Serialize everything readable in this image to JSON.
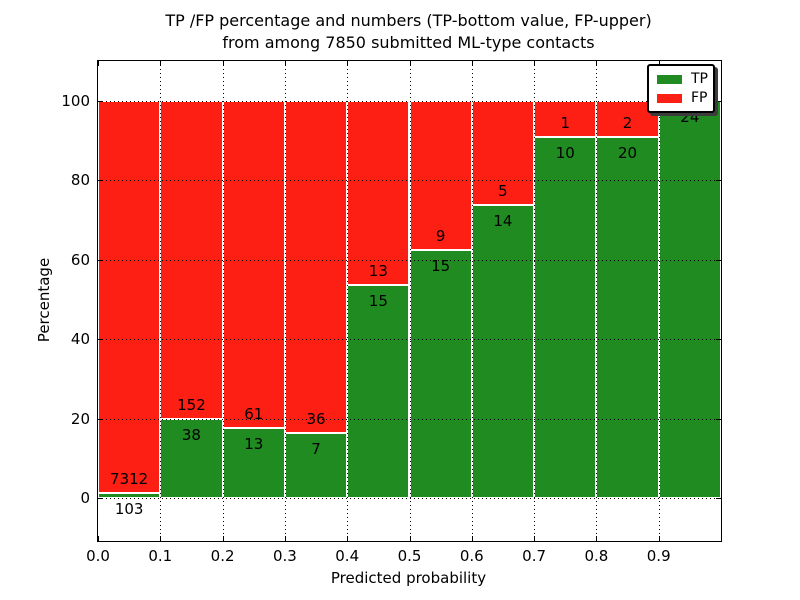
{
  "figure": {
    "title_line1": "TP /FP percentage and numbers (TP-bottom value, FP-upper)",
    "title_line2": "from among 7850 submitted ML-type contacts"
  },
  "legend": {
    "items": [
      {
        "label": "TP",
        "color": "#208b20"
      },
      {
        "label": "FP",
        "color": "#fd1e14"
      }
    ]
  },
  "chart_data": {
    "type": "bar",
    "stacked": true,
    "title": "TP /FP percentage and numbers (TP-bottom value, FP-upper)\nfrom among 7850 submitted ML-type contacts",
    "xlabel": "Predicted probability",
    "ylabel": "Percentage",
    "xlim": [
      0.0,
      1.0
    ],
    "ylim": [
      -10.8,
      110
    ],
    "grid": true,
    "grid_style": "dotted",
    "legend_position": "upper right",
    "bar_width": 0.1,
    "bin_starts": [
      0.0,
      0.1,
      0.2,
      0.3,
      0.4,
      0.5,
      0.6,
      0.7,
      0.8,
      0.9
    ],
    "series": [
      {
        "name": "TP",
        "color": "#208b20",
        "counts": [
          103,
          38,
          13,
          7,
          15,
          15,
          14,
          10,
          20,
          24
        ]
      },
      {
        "name": "FP",
        "color": "#fd1e14",
        "counts": [
          7312,
          152,
          61,
          36,
          13,
          9,
          5,
          1,
          2,
          0
        ]
      }
    ],
    "tp_percent": [
      1.4,
      20.0,
      17.6,
      16.3,
      53.6,
      62.5,
      73.7,
      90.9,
      90.9,
      100.0
    ],
    "total_contacts": 7850,
    "x_ticks": [
      {
        "v": 0.0,
        "label": "0.0"
      },
      {
        "v": 0.1,
        "label": "0.1"
      },
      {
        "v": 0.2,
        "label": "0.2"
      },
      {
        "v": 0.3,
        "label": "0.3"
      },
      {
        "v": 0.4,
        "label": "0.4"
      },
      {
        "v": 0.5,
        "label": "0.5"
      },
      {
        "v": 0.6,
        "label": "0.6"
      },
      {
        "v": 0.7,
        "label": "0.7"
      },
      {
        "v": 0.8,
        "label": "0.8"
      },
      {
        "v": 0.9,
        "label": "0.9"
      }
    ],
    "y_ticks": [
      {
        "v": 0,
        "label": "0"
      },
      {
        "v": 20,
        "label": "20"
      },
      {
        "v": 40,
        "label": "40"
      },
      {
        "v": 60,
        "label": "60"
      },
      {
        "v": 80,
        "label": "80"
      },
      {
        "v": 100,
        "label": "100"
      }
    ]
  }
}
